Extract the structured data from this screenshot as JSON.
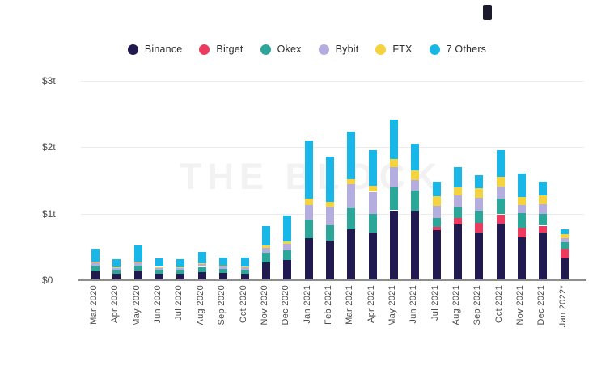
{
  "watermark": "THE BLOCK",
  "legend": [
    {
      "label": "Binance",
      "color": "#211a51"
    },
    {
      "label": "Bitget",
      "color": "#ee3a5f"
    },
    {
      "label": "Okex",
      "color": "#2ba79a"
    },
    {
      "label": "Bybit",
      "color": "#b3ade0"
    },
    {
      "label": "FTX",
      "color": "#f5d33f"
    },
    {
      "label": "7 Others",
      "color": "#19b7e8"
    }
  ],
  "colors": {
    "gridline": "#ececec",
    "axis": "#8e8e8e",
    "tick_text": "#4a4a4a",
    "watermark": "#f2f2f2"
  },
  "chart_data": {
    "type": "bar",
    "stacked": true,
    "units": "trillions of USD",
    "title": "",
    "xlabel": "",
    "ylabel": "",
    "ylim": [
      0,
      3
    ],
    "grid": true,
    "legend_position": "top",
    "y_ticks": [
      {
        "label": "$0",
        "value": 0
      },
      {
        "label": "$1t",
        "value": 1
      },
      {
        "label": "$2t",
        "value": 2
      },
      {
        "label": "$3t",
        "value": 3
      }
    ],
    "categories": [
      "Mar 2020",
      "Apr 2020",
      "May 2020",
      "Jun 2020",
      "Jul 2020",
      "Aug 2020",
      "Sep 2020",
      "Oct 2020",
      "Nov 2020",
      "Dec 2020",
      "Jan 2021",
      "Feb 2021",
      "Mar 2021",
      "Apr 2021",
      "May 2021",
      "Jun 2021",
      "Jul 2021",
      "Aug 2021",
      "Sep 2021",
      "Oct 2021",
      "Nov 2021",
      "Dec 2021",
      "Jan 2022*"
    ],
    "series": [
      {
        "name": "Binance",
        "color": "#211a51",
        "values": [
          0.13,
          0.1,
          0.14,
          0.1,
          0.1,
          0.12,
          0.11,
          0.1,
          0.27,
          0.31,
          0.63,
          0.59,
          0.76,
          0.72,
          1.05,
          1.05,
          0.75,
          0.84,
          0.72,
          0.85,
          0.65,
          0.72,
          0.33
        ]
      },
      {
        "name": "Bitget",
        "color": "#ee3a5f",
        "values": [
          0,
          0,
          0,
          0,
          0,
          0,
          0,
          0,
          0,
          0,
          0,
          0,
          0,
          0,
          0,
          0,
          0.05,
          0.1,
          0.14,
          0.14,
          0.14,
          0.1,
          0.14
        ]
      },
      {
        "name": "Okex",
        "color": "#2ba79a",
        "values": [
          0.09,
          0.06,
          0.08,
          0.06,
          0.06,
          0.08,
          0.06,
          0.06,
          0.14,
          0.14,
          0.28,
          0.24,
          0.33,
          0.28,
          0.35,
          0.3,
          0.14,
          0.16,
          0.18,
          0.24,
          0.22,
          0.18,
          0.1
        ]
      },
      {
        "name": "Bybit",
        "color": "#b3ade0",
        "values": [
          0.05,
          0.03,
          0.05,
          0.03,
          0.03,
          0.04,
          0.04,
          0.04,
          0.08,
          0.1,
          0.22,
          0.28,
          0.35,
          0.33,
          0.3,
          0.16,
          0.18,
          0.18,
          0.2,
          0.18,
          0.12,
          0.14,
          0.06
        ]
      },
      {
        "name": "FTX",
        "color": "#f5d33f",
        "values": [
          0.01,
          0.01,
          0.01,
          0.01,
          0.01,
          0.01,
          0.01,
          0.01,
          0.03,
          0.03,
          0.1,
          0.07,
          0.08,
          0.09,
          0.12,
          0.14,
          0.14,
          0.12,
          0.14,
          0.14,
          0.12,
          0.14,
          0.06
        ]
      },
      {
        "name": "7 Others",
        "color": "#19b7e8",
        "values": [
          0.2,
          0.12,
          0.24,
          0.13,
          0.12,
          0.18,
          0.12,
          0.13,
          0.3,
          0.39,
          0.87,
          0.68,
          0.71,
          0.54,
          0.6,
          0.4,
          0.22,
          0.3,
          0.2,
          0.4,
          0.35,
          0.2,
          0.08
        ]
      }
    ],
    "totals": [
      0.48,
      0.32,
      0.52,
      0.33,
      0.32,
      0.43,
      0.34,
      0.34,
      0.82,
      0.97,
      2.1,
      1.86,
      2.23,
      1.96,
      2.42,
      2.05,
      1.48,
      1.7,
      1.58,
      1.95,
      1.6,
      1.48,
      0.77
    ]
  }
}
